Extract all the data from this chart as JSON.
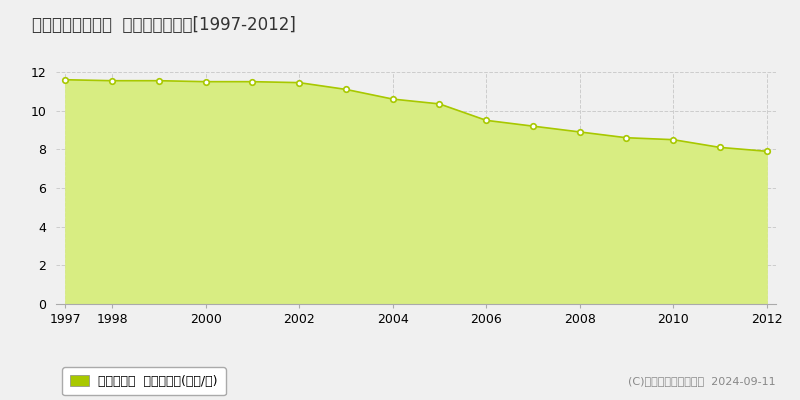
{
  "title": "遠賀郡遠賀町別府  基準地価格推移[1997-2012]",
  "years": [
    1997,
    1998,
    1999,
    2000,
    2001,
    2002,
    2003,
    2004,
    2005,
    2006,
    2007,
    2008,
    2009,
    2010,
    2011,
    2012
  ],
  "values": [
    11.6,
    11.55,
    11.55,
    11.5,
    11.5,
    11.45,
    11.1,
    10.6,
    10.35,
    9.5,
    9.2,
    8.9,
    8.6,
    8.5,
    8.1,
    7.9
  ],
  "xtick_years": [
    1997,
    1998,
    2000,
    2002,
    2004,
    2006,
    2008,
    2010,
    2012
  ],
  "line_color": "#a8c800",
  "fill_color": "#d8ed82",
  "marker_color": "#ffffff",
  "marker_edge_color": "#a8c800",
  "background_color": "#f0f0f0",
  "plot_bg_color": "#f0f0f0",
  "grid_color": "#cccccc",
  "ylim": [
    0,
    12
  ],
  "yticks": [
    0,
    2,
    4,
    6,
    8,
    10,
    12
  ],
  "legend_label": "基準地価格  平均坤単価(万円/坤)",
  "legend_color": "#a8c800",
  "copyright_text": "(C)土地価格ドットコム  2024-09-11",
  "title_fontsize": 12,
  "axis_fontsize": 9,
  "legend_fontsize": 9,
  "copyright_fontsize": 8
}
